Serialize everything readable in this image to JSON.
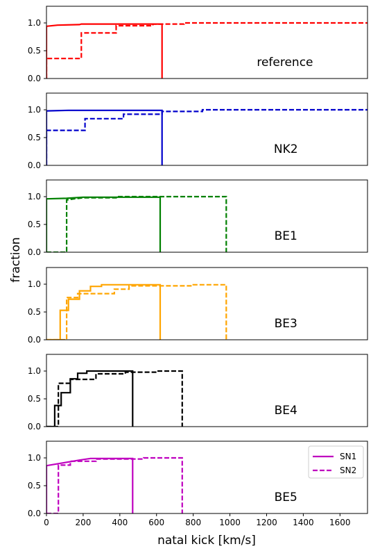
{
  "chart_data": {
    "type": "line",
    "step": true,
    "xlabel": "natal kick [km/s]",
    "ylabel": "fraction",
    "xlim": [
      0,
      1750
    ],
    "ylim": [
      0,
      1.3
    ],
    "xticks": [
      "0",
      "200",
      "400",
      "600",
      "800",
      "1000",
      "1200",
      "1400",
      "1600"
    ],
    "xtick_values": [
      0,
      200,
      400,
      600,
      800,
      1000,
      1200,
      1400,
      1600
    ],
    "yticks": [
      "0.0",
      "0.5",
      "1.0"
    ],
    "ytick_values": [
      0,
      0.5,
      1.0
    ],
    "legend": {
      "location": "upper right of last panel",
      "entries": [
        {
          "label": "SN1",
          "style": "solid"
        },
        {
          "label": "SN2",
          "style": "dashed"
        }
      ]
    },
    "panels": [
      {
        "label": "reference",
        "color": "#ff0000",
        "series": [
          {
            "name": "SN1",
            "style": "solid",
            "x": [
              0,
              0,
              60,
              180,
              190,
              630,
              630
            ],
            "y": [
              0,
              0.94,
              0.96,
              0.97,
              0.98,
              0.98,
              0
            ]
          },
          {
            "name": "SN2",
            "style": "dashed",
            "x": [
              0,
              0,
              190,
              190,
              380,
              380,
              580,
              580,
              750,
              750,
              1750
            ],
            "y": [
              0,
              0.36,
              0.36,
              0.82,
              0.82,
              0.95,
              0.95,
              0.98,
              0.98,
              1.0,
              1.0
            ]
          }
        ]
      },
      {
        "label": "NK2",
        "color": "#0000cc",
        "series": [
          {
            "name": "SN1",
            "style": "solid",
            "x": [
              0,
              0,
              120,
              630,
              630
            ],
            "y": [
              0,
              0.98,
              0.99,
              0.99,
              0
            ]
          },
          {
            "name": "SN2",
            "style": "dashed",
            "x": [
              0,
              0,
              210,
              210,
              420,
              420,
              630,
              630,
              850,
              850,
              1750
            ],
            "y": [
              0,
              0.63,
              0.63,
              0.84,
              0.84,
              0.92,
              0.92,
              0.97,
              0.97,
              1.0,
              1.0
            ]
          }
        ]
      },
      {
        "label": "BE1",
        "color": "#008000",
        "series": [
          {
            "name": "SN1",
            "style": "solid",
            "x": [
              0,
              0,
              110,
              200,
              620,
              620
            ],
            "y": [
              0,
              0.96,
              0.97,
              0.99,
              0.99,
              0
            ]
          },
          {
            "name": "SN2",
            "style": "dashed",
            "x": [
              0,
              110,
              110,
              150,
              200,
              380,
              380,
              980,
              980
            ],
            "y": [
              0,
              0,
              0.94,
              0.96,
              0.98,
              0.98,
              1.0,
              1.0,
              0
            ]
          }
        ]
      },
      {
        "label": "BE3",
        "color": "#ffa500",
        "series": [
          {
            "name": "SN1",
            "style": "solid",
            "x": [
              0,
              75,
              75,
              120,
              120,
              180,
              180,
              240,
              240,
              300,
              300,
              620,
              620
            ],
            "y": [
              0,
              0,
              0.53,
              0.53,
              0.73,
              0.73,
              0.88,
              0.88,
              0.96,
              0.96,
              0.99,
              0.99,
              0
            ]
          },
          {
            "name": "SN2",
            "style": "dashed",
            "x": [
              0,
              110,
              110,
              170,
              170,
              370,
              370,
              450,
              450,
              800,
              800,
              980,
              980
            ],
            "y": [
              0,
              0,
              0.76,
              0.76,
              0.83,
              0.83,
              0.91,
              0.91,
              0.97,
              0.97,
              0.99,
              0.99,
              0
            ]
          }
        ]
      },
      {
        "label": "BE4",
        "color": "#000000",
        "series": [
          {
            "name": "SN1",
            "style": "solid",
            "x": [
              0,
              45,
              45,
              80,
              80,
              130,
              130,
              170,
              170,
              220,
              220,
              470,
              470
            ],
            "y": [
              0,
              0,
              0.38,
              0.38,
              0.61,
              0.61,
              0.86,
              0.86,
              0.96,
              0.96,
              1.0,
              1.0,
              0
            ]
          },
          {
            "name": "SN2",
            "style": "dashed",
            "x": [
              0,
              65,
              65,
              130,
              130,
              270,
              270,
              430,
              430,
              600,
              600,
              740,
              740
            ],
            "y": [
              0,
              0,
              0.78,
              0.78,
              0.85,
              0.85,
              0.95,
              0.95,
              0.98,
              0.98,
              1.0,
              1.0,
              0
            ]
          }
        ]
      },
      {
        "label": "BE5",
        "color": "#bf00bf",
        "series": [
          {
            "name": "SN1",
            "style": "solid",
            "x": [
              0,
              0,
              90,
              180,
              240,
              470,
              470
            ],
            "y": [
              0,
              0.86,
              0.91,
              0.96,
              0.99,
              0.99,
              0
            ]
          },
          {
            "name": "SN2",
            "style": "dashed",
            "x": [
              0,
              65,
              65,
              130,
              130,
              270,
              270,
              530,
              530,
              740,
              740
            ],
            "y": [
              0,
              0,
              0.87,
              0.87,
              0.94,
              0.94,
              0.98,
              0.98,
              1.0,
              1.0,
              0
            ]
          }
        ]
      }
    ]
  }
}
